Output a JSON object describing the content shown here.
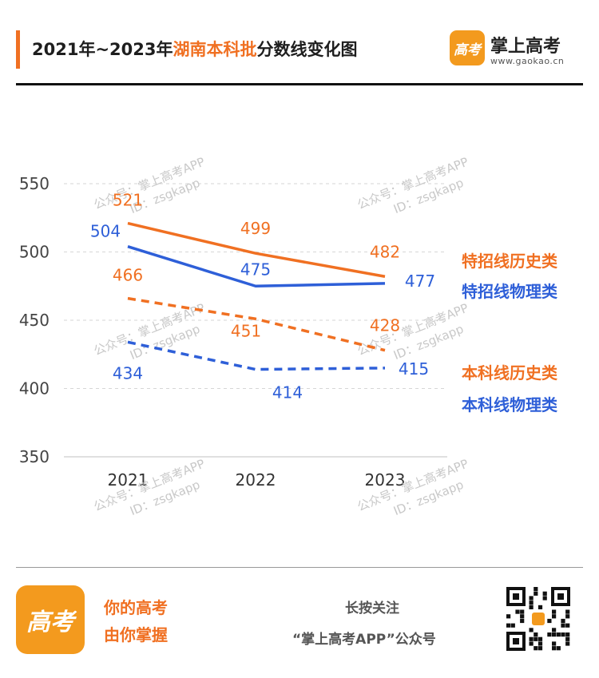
{
  "header": {
    "title_prefix": "2021年~2023年",
    "title_highlight": "湖南本科批",
    "title_suffix": "分数线变化图",
    "brand_logo_text": "高考",
    "brand_name": "掌上高考",
    "brand_url": "www.gaokao.cn"
  },
  "watermark": {
    "line1": "公众号：掌上高考APP",
    "line2": "ID：zsgkapp"
  },
  "colors": {
    "orange": "#f07022",
    "blue": "#2e5fd8",
    "grid": "#d6d6d6"
  },
  "chart_data": {
    "type": "line",
    "title": "2021年~2023年湖南本科批分数线变化图",
    "categories": [
      "2021",
      "2022",
      "2023"
    ],
    "ylim": [
      350,
      550
    ],
    "yticks": [
      550,
      500,
      450,
      400,
      350
    ],
    "grid": true,
    "legend_placement": "right",
    "series": [
      {
        "name": "特招线历史类",
        "values": [
          521,
          499,
          482
        ],
        "color": "#f07022",
        "dashed": false
      },
      {
        "name": "特招线物理类",
        "values": [
          504,
          475,
          477
        ],
        "color": "#2e5fd8",
        "dashed": false
      },
      {
        "name": "本科线历史类",
        "values": [
          466,
          451,
          428
        ],
        "color": "#f07022",
        "dashed": true
      },
      {
        "name": "本科线物理类",
        "values": [
          434,
          414,
          415
        ],
        "color": "#2e5fd8",
        "dashed": true
      }
    ]
  },
  "footer": {
    "logo_text": "高考",
    "slogan_line1": "你的高考",
    "slogan_line2": "由你掌握",
    "follow_line1": "长按关注",
    "follow_line2": "“掌上高考APP”公众号"
  }
}
